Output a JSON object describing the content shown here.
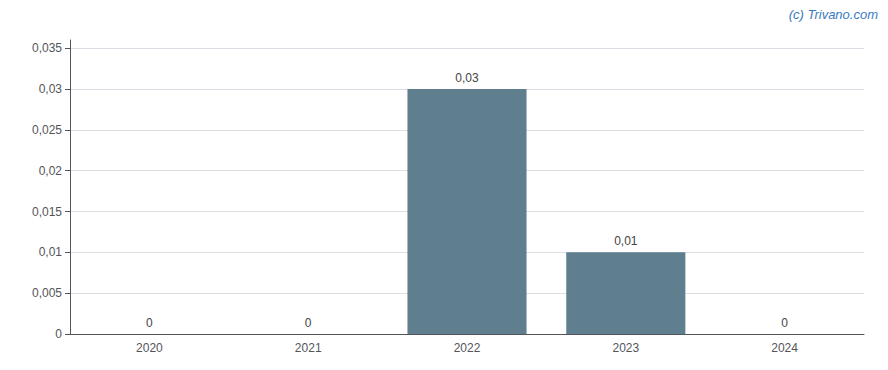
{
  "chart_data": {
    "type": "bar",
    "categories": [
      "2020",
      "2021",
      "2022",
      "2023",
      "2024"
    ],
    "values": [
      0,
      0,
      0.03,
      0.01,
      0
    ],
    "value_labels": [
      "0",
      "0",
      "0,03",
      "0,01",
      "0"
    ],
    "color": "#5f7f8f",
    "ylim": [
      0,
      0.036
    ],
    "yticks": [
      0,
      {
        "value": 0.005,
        "label": "0,005"
      },
      {
        "value": 0.01,
        "label": "0,01"
      },
      {
        "value": 0.015,
        "label": "0,015"
      },
      {
        "value": 0.02,
        "label": "0,02"
      },
      {
        "value": 0.025,
        "label": "0,025"
      },
      {
        "value": 0.03,
        "label": "0,03"
      },
      {
        "value": 0.035,
        "label": "0,035"
      }
    ],
    "grid": true,
    "data_labels": true,
    "annotations": [
      {
        "text": "(c) Trivano.com",
        "color": "#3a7bbf"
      }
    ]
  }
}
